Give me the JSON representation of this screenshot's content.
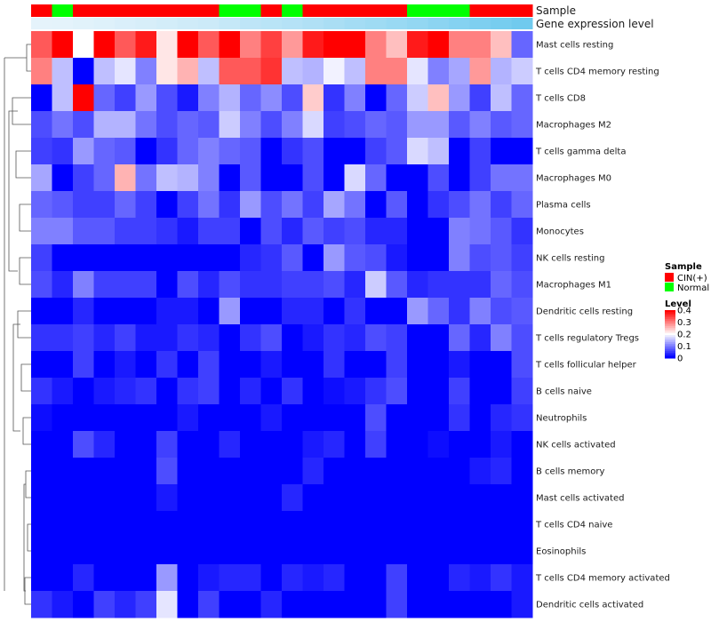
{
  "chart_data": {
    "type": "heatmap",
    "annotation_tracks": [
      {
        "name": "Sample",
        "values": [
          "CIN(+)",
          "Normal",
          "CIN(+)",
          "CIN(+)",
          "CIN(+)",
          "CIN(+)",
          "CIN(+)",
          "CIN(+)",
          "CIN(+)",
          "Normal",
          "Normal",
          "CIN(+)",
          "Normal",
          "CIN(+)",
          "CIN(+)",
          "CIN(+)",
          "CIN(+)",
          "CIN(+)",
          "Normal",
          "Normal",
          "Normal",
          "CIN(+)",
          "CIN(+)",
          "CIN(+)"
        ]
      },
      {
        "name": "Gene expression level",
        "values": [
          0.02,
          0.03,
          0.05,
          0.07,
          0.1,
          0.12,
          0.15,
          0.18,
          0.2,
          0.25,
          0.3,
          0.33,
          0.36,
          0.4,
          0.44,
          0.48,
          0.52,
          0.56,
          0.6,
          0.65,
          0.7,
          0.75,
          0.8,
          0.85
        ]
      }
    ],
    "rows": [
      "Mast cells resting",
      "T cells CD4 memory resting",
      "T cells CD8",
      "Macrophages M2",
      "T cells gamma delta",
      "Macrophages M0",
      "Plasma cells",
      "Monocytes",
      "NK cells resting",
      "Macrophages M1",
      "Dendritic cells resting",
      "T cells regulatory  Tregs",
      "T cells follicular helper",
      "B cells naive",
      "Neutrophils",
      "NK cells activated",
      "B cells memory",
      "Mast cells activated",
      "T cells CD4 naive",
      "Eosinophils",
      "T cells CD4 memory activated",
      "Dendritic cells activated"
    ],
    "values": [
      [
        0.33,
        0.4,
        0.2,
        0.4,
        0.33,
        0.38,
        0.22,
        0.4,
        0.33,
        0.4,
        0.3,
        0.35,
        0.28,
        0.38,
        0.4,
        0.4,
        0.3,
        0.25,
        0.38,
        0.4,
        0.3,
        0.3,
        0.25,
        0.08
      ],
      [
        0.3,
        0.15,
        0.0,
        0.15,
        0.18,
        0.1,
        0.22,
        0.26,
        0.15,
        0.33,
        0.33,
        0.36,
        0.15,
        0.14,
        0.19,
        0.15,
        0.3,
        0.3,
        0.18,
        0.1,
        0.13,
        0.28,
        0.14,
        0.16
      ],
      [
        0.0,
        0.15,
        0.4,
        0.08,
        0.05,
        0.12,
        0.06,
        0.02,
        0.1,
        0.14,
        0.08,
        0.11,
        0.06,
        0.24,
        0.04,
        0.1,
        0.0,
        0.08,
        0.16,
        0.25,
        0.12,
        0.05,
        0.15,
        0.08
      ],
      [
        0.06,
        0.09,
        0.06,
        0.14,
        0.14,
        0.09,
        0.06,
        0.08,
        0.07,
        0.16,
        0.1,
        0.06,
        0.1,
        0.17,
        0.05,
        0.06,
        0.08,
        0.07,
        0.12,
        0.12,
        0.07,
        0.1,
        0.07,
        0.08
      ],
      [
        0.05,
        0.04,
        0.12,
        0.08,
        0.07,
        0.0,
        0.04,
        0.08,
        0.1,
        0.08,
        0.07,
        0.0,
        0.04,
        0.06,
        0.0,
        0.0,
        0.05,
        0.07,
        0.17,
        0.15,
        0.0,
        0.05,
        0.0,
        0.0
      ],
      [
        0.13,
        0.0,
        0.05,
        0.08,
        0.26,
        0.09,
        0.15,
        0.14,
        0.1,
        0.0,
        0.07,
        0.0,
        0.0,
        0.06,
        0.0,
        0.17,
        0.08,
        0.0,
        0.0,
        0.06,
        0.0,
        0.05,
        0.09,
        0.09
      ],
      [
        0.08,
        0.07,
        0.05,
        0.05,
        0.08,
        0.05,
        0.0,
        0.05,
        0.09,
        0.04,
        0.12,
        0.06,
        0.09,
        0.05,
        0.13,
        0.09,
        0.0,
        0.07,
        0.0,
        0.04,
        0.06,
        0.09,
        0.05,
        0.08
      ],
      [
        0.1,
        0.1,
        0.07,
        0.07,
        0.05,
        0.05,
        0.04,
        0.02,
        0.05,
        0.05,
        0.0,
        0.06,
        0.03,
        0.07,
        0.05,
        0.06,
        0.03,
        0.03,
        0.0,
        0.0,
        0.1,
        0.09,
        0.07,
        0.04
      ],
      [
        0.05,
        0.0,
        0.0,
        0.0,
        0.0,
        0.0,
        0.0,
        0.0,
        0.0,
        0.0,
        0.03,
        0.04,
        0.07,
        0.0,
        0.12,
        0.07,
        0.06,
        0.02,
        0.0,
        0.0,
        0.1,
        0.06,
        0.07,
        0.05
      ],
      [
        0.06,
        0.03,
        0.1,
        0.05,
        0.05,
        0.05,
        0.0,
        0.06,
        0.03,
        0.06,
        0.04,
        0.04,
        0.05,
        0.05,
        0.06,
        0.03,
        0.16,
        0.07,
        0.03,
        0.04,
        0.04,
        0.04,
        0.08,
        0.06
      ],
      [
        0.0,
        0.0,
        0.03,
        0.0,
        0.0,
        0.0,
        0.02,
        0.02,
        0.0,
        0.12,
        0.0,
        0.0,
        0.03,
        0.03,
        0.0,
        0.04,
        0.0,
        0.0,
        0.12,
        0.08,
        0.04,
        0.1,
        0.06,
        0.07
      ],
      [
        0.04,
        0.04,
        0.05,
        0.03,
        0.05,
        0.02,
        0.02,
        0.04,
        0.03,
        0.0,
        0.04,
        0.06,
        0.0,
        0.02,
        0.04,
        0.03,
        0.06,
        0.05,
        0.0,
        0.0,
        0.08,
        0.03,
        0.1,
        0.06
      ],
      [
        0.0,
        0.0,
        0.05,
        0.0,
        0.02,
        0.0,
        0.04,
        0.0,
        0.05,
        0.0,
        0.0,
        0.02,
        0.0,
        0.0,
        0.04,
        0.0,
        0.0,
        0.05,
        0.0,
        0.0,
        0.02,
        0.0,
        0.0,
        0.06
      ],
      [
        0.04,
        0.02,
        0.0,
        0.02,
        0.03,
        0.04,
        0.0,
        0.04,
        0.05,
        0.0,
        0.03,
        0.0,
        0.04,
        0.0,
        0.01,
        0.02,
        0.04,
        0.06,
        0.0,
        0.0,
        0.05,
        0.0,
        0.0,
        0.05
      ],
      [
        0.01,
        0.0,
        0.0,
        0.0,
        0.0,
        0.0,
        0.0,
        0.02,
        0.0,
        0.0,
        0.0,
        0.02,
        0.0,
        0.0,
        0.0,
        0.0,
        0.06,
        0.0,
        0.0,
        0.0,
        0.04,
        0.0,
        0.03,
        0.04
      ],
      [
        0.0,
        0.0,
        0.06,
        0.03,
        0.0,
        0.0,
        0.05,
        0.0,
        0.0,
        0.03,
        0.0,
        0.0,
        0.0,
        0.02,
        0.03,
        0.0,
        0.05,
        0.0,
        0.0,
        0.01,
        0.0,
        0.0,
        0.02,
        0.0
      ],
      [
        0.0,
        0.0,
        0.0,
        0.0,
        0.0,
        0.0,
        0.06,
        0.0,
        0.0,
        0.0,
        0.0,
        0.0,
        0.0,
        0.03,
        0.0,
        0.0,
        0.0,
        0.0,
        0.0,
        0.0,
        0.0,
        0.02,
        0.03,
        0.0
      ],
      [
        0.0,
        0.0,
        0.0,
        0.0,
        0.0,
        0.0,
        0.02,
        0.0,
        0.0,
        0.0,
        0.0,
        0.0,
        0.03,
        0.0,
        0.0,
        0.0,
        0.0,
        0.0,
        0.0,
        0.0,
        0.0,
        0.0,
        0.0,
        0.0
      ],
      [
        0.0,
        0.0,
        0.0,
        0.0,
        0.0,
        0.0,
        0.0,
        0.0,
        0.0,
        0.0,
        0.0,
        0.0,
        0.0,
        0.0,
        0.0,
        0.0,
        0.0,
        0.0,
        0.0,
        0.0,
        0.0,
        0.0,
        0.0,
        0.0
      ],
      [
        0.0,
        0.0,
        0.0,
        0.0,
        0.0,
        0.0,
        0.0,
        0.0,
        0.0,
        0.0,
        0.0,
        0.0,
        0.0,
        0.0,
        0.0,
        0.0,
        0.0,
        0.0,
        0.0,
        0.0,
        0.0,
        0.0,
        0.0,
        0.0
      ],
      [
        0.0,
        0.0,
        0.03,
        0.0,
        0.0,
        0.0,
        0.12,
        0.0,
        0.02,
        0.03,
        0.03,
        0.0,
        0.03,
        0.02,
        0.03,
        0.0,
        0.0,
        0.05,
        0.0,
        0.0,
        0.03,
        0.02,
        0.04,
        0.02
      ],
      [
        0.04,
        0.02,
        0.0,
        0.05,
        0.03,
        0.05,
        0.18,
        0.0,
        0.05,
        0.0,
        0.0,
        0.03,
        0.0,
        0.0,
        0.0,
        0.0,
        0.0,
        0.05,
        0.0,
        0.0,
        0.0,
        0.0,
        0.0,
        0.02
      ]
    ],
    "legend": {
      "sample_title": "Sample",
      "sample_items": [
        {
          "label": "CIN(+)",
          "color": "#ff0000"
        },
        {
          "label": "Normal",
          "color": "#00ff00"
        }
      ],
      "level_title": "Level",
      "level_ticks": [
        "0.4",
        "0.3",
        "0.2",
        "0.1",
        "0"
      ],
      "level_range": [
        0,
        0.4
      ]
    },
    "colors": {
      "low": "#0000ff",
      "mid": "#ffffff",
      "high": "#ff0000",
      "expr_light": "#e8f4fb",
      "expr_dark": "#5bc3ec"
    },
    "dendrogram": "row-clustering"
  }
}
